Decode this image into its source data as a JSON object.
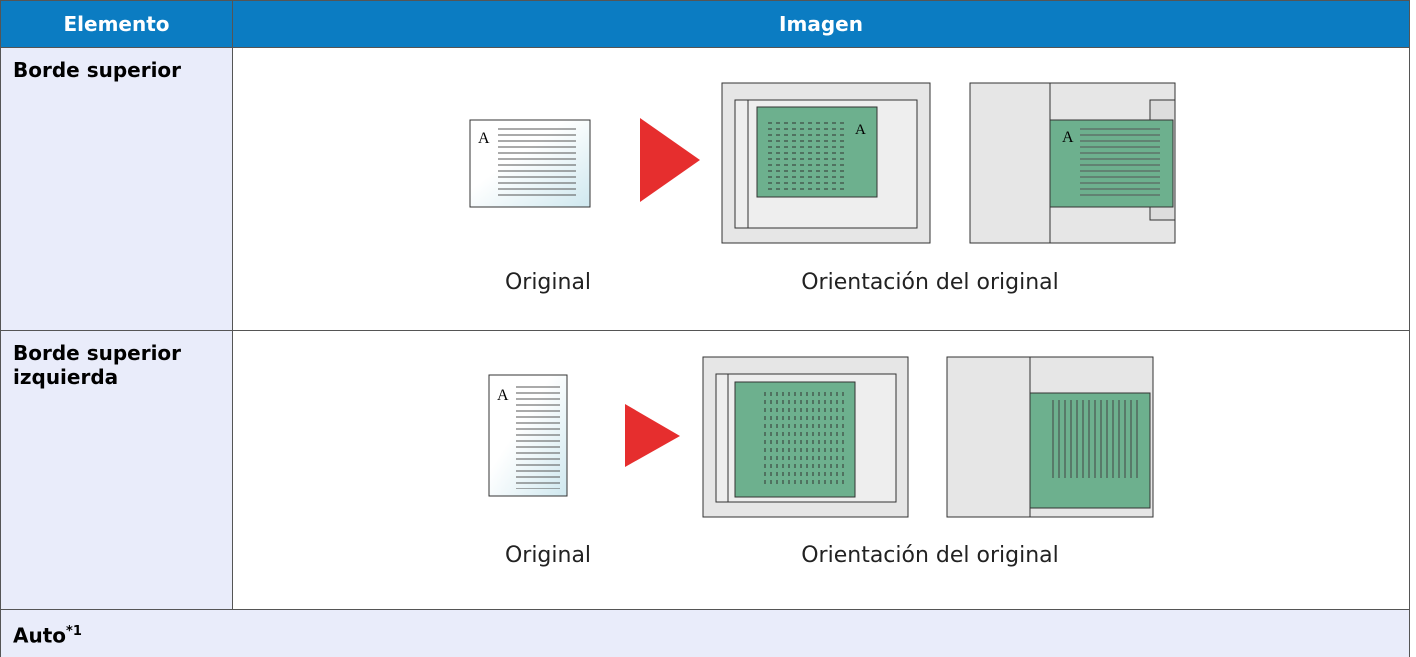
{
  "table": {
    "header": [
      "Elemento",
      "Imagen"
    ],
    "rows": [
      {
        "item": "Borde superior",
        "original_label": "Original",
        "orientation_label": "Orientación del original"
      },
      {
        "item": "Borde superior izquierda",
        "original_label": "Original",
        "orientation_label": "Orientación del original"
      }
    ],
    "footer": {
      "label": "Auto",
      "note": "*1"
    }
  }
}
